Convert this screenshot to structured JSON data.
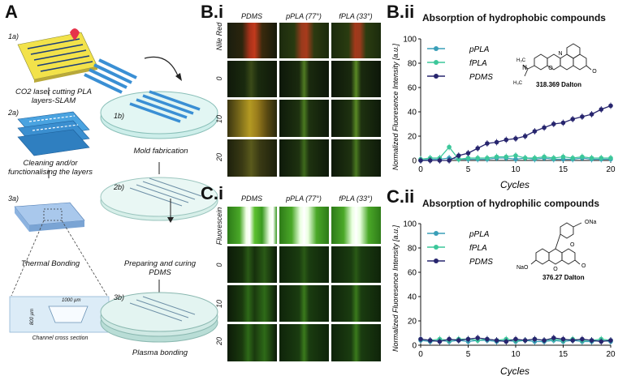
{
  "panelA": {
    "letter": "A",
    "steps": [
      {
        "num": "1a)",
        "text": "CO2 laser cutting PLA layers-SLAM"
      },
      {
        "num": "2a)",
        "text": "Cleaning and/or functionalising the layers"
      },
      {
        "num": "3a)",
        "text": "Thermal Bonding"
      },
      {
        "num": "1b)",
        "text": "Mold fabrication"
      },
      {
        "num": "2b)",
        "text": "Preparing and curing PDMS"
      },
      {
        "num": "3b)",
        "text": "Plasma bonding"
      }
    ],
    "cross_section": {
      "title": "Channel cross section",
      "width_label": "1000 µm",
      "depth_label": "800 µm"
    }
  },
  "panelBi": {
    "letter": "B.i",
    "columns": [
      "PDMS",
      "pPLA (77°)",
      "fPLA (33°)"
    ],
    "rows": [
      "Nile Red",
      "0",
      "10",
      "20"
    ]
  },
  "panelCi": {
    "letter": "C.i",
    "columns": [
      "PDMS",
      "pPLA (77°)",
      "fPLA (33°)"
    ],
    "rows": [
      "Fluorescein",
      "0",
      "10",
      "20"
    ]
  },
  "colors": {
    "pPLA": "#3a9fb8",
    "fPLA": "#3cc79a",
    "PDMS": "#27256e",
    "red_line": "#c0392b"
  },
  "chart_data": [
    {
      "panel": "B.ii",
      "type": "line",
      "title": "Absorption of hydrophobic compounds",
      "xlabel": "Cycles",
      "ylabel": "Normalized Fluoresence Intensity [a.u.]",
      "xlim": [
        0,
        20
      ],
      "ylim": [
        0,
        100
      ],
      "xticks": [
        0,
        5,
        10,
        15,
        20
      ],
      "yticks": [
        0,
        20,
        40,
        60,
        80,
        100
      ],
      "legend_position": "top-left",
      "molecule_label": "318.369 Dalton",
      "series": [
        {
          "name": "pPLA",
          "color": "#3a9fb8",
          "x": [
            0,
            1,
            2,
            3,
            4,
            5,
            6,
            7,
            8,
            9,
            10,
            11,
            12,
            13,
            14,
            15,
            16,
            17,
            18,
            19,
            20
          ],
          "y": [
            0,
            1,
            1,
            2,
            1,
            1,
            1,
            1,
            2,
            2,
            1,
            2,
            1,
            2,
            1,
            1,
            1,
            2,
            1,
            1,
            1
          ]
        },
        {
          "name": "fPLA",
          "color": "#3cc79a",
          "x": [
            0,
            1,
            2,
            3,
            4,
            5,
            6,
            7,
            8,
            9,
            10,
            11,
            12,
            13,
            14,
            15,
            16,
            17,
            18,
            19,
            20
          ],
          "y": [
            1,
            2,
            2,
            11,
            1,
            2,
            2,
            2,
            3,
            3,
            4,
            2,
            2,
            3,
            2,
            3,
            2,
            3,
            2,
            2,
            2
          ]
        },
        {
          "name": "PDMS",
          "color": "#27256e",
          "x": [
            0,
            1,
            2,
            3,
            4,
            5,
            6,
            7,
            8,
            9,
            10,
            11,
            12,
            13,
            14,
            15,
            16,
            17,
            18,
            19,
            20
          ],
          "y": [
            0,
            0,
            0,
            0,
            4,
            6,
            10,
            14,
            15,
            17,
            18,
            20,
            24,
            27,
            30,
            31,
            34,
            36,
            38,
            42,
            45
          ]
        }
      ]
    },
    {
      "panel": "C.ii",
      "type": "line",
      "title": "Absorption of hydrophilic compounds",
      "xlabel": "Cycles",
      "ylabel": "Normalized Fluoresence Intensity [a.u.]",
      "xlim": [
        0,
        20
      ],
      "ylim": [
        0,
        100
      ],
      "xticks": [
        0,
        5,
        10,
        15,
        20
      ],
      "yticks": [
        0,
        20,
        40,
        60,
        80,
        100
      ],
      "legend_position": "top-left",
      "molecule_label": "376.27 Dalton",
      "molecule_atoms": {
        "carbonyl": "O",
        "salt": "ONa",
        "ring_o": "O",
        "left": "NaO"
      },
      "series": [
        {
          "name": "pPLA",
          "color": "#3a9fb8",
          "x": [
            0,
            1,
            2,
            3,
            4,
            5,
            6,
            7,
            8,
            9,
            10,
            11,
            12,
            13,
            14,
            15,
            16,
            17,
            18,
            19,
            20
          ],
          "y": [
            4,
            3,
            4,
            3,
            4,
            3,
            4,
            4,
            3,
            4,
            3,
            4,
            3,
            3,
            4,
            3,
            4,
            3,
            3,
            4,
            3
          ]
        },
        {
          "name": "fPLA",
          "color": "#3cc79a",
          "x": [
            0,
            1,
            2,
            3,
            4,
            5,
            6,
            7,
            8,
            9,
            10,
            11,
            12,
            13,
            14,
            15,
            16,
            17,
            18,
            19,
            20
          ],
          "y": [
            5,
            4,
            5,
            4,
            5,
            5,
            4,
            5,
            4,
            5,
            4,
            4,
            5,
            4,
            5,
            4,
            5,
            4,
            4,
            5,
            4
          ]
        },
        {
          "name": "PDMS",
          "color": "#27256e",
          "x": [
            0,
            1,
            2,
            3,
            4,
            5,
            6,
            7,
            8,
            9,
            10,
            11,
            12,
            13,
            14,
            15,
            16,
            17,
            18,
            19,
            20
          ],
          "y": [
            5,
            4,
            3,
            5,
            4,
            5,
            6,
            5,
            4,
            3,
            5,
            4,
            5,
            4,
            6,
            5,
            4,
            5,
            4,
            3,
            4
          ]
        }
      ]
    }
  ]
}
